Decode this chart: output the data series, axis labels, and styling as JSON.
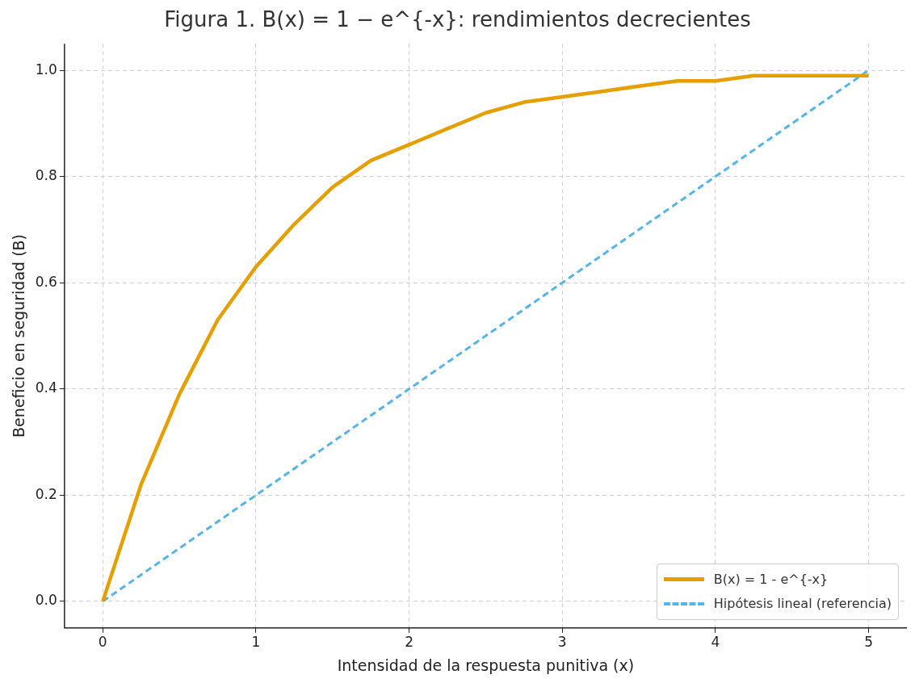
{
  "chart_data": {
    "type": "line",
    "title": "Figura 1. B(x) = 1 − e^{-x}: rendimientos decrecientes",
    "xlabel": "Intensidad de la respuesta punitiva (x)",
    "ylabel": "Beneficio en seguridad (B)",
    "series": [
      {
        "name": "B(x) = 1 - e^{-x}",
        "color": "#e69f00",
        "line_style": "solid",
        "x": [
          0,
          0.25,
          0.5,
          0.75,
          1,
          1.25,
          1.5,
          1.75,
          2,
          2.25,
          2.5,
          2.75,
          3,
          3.25,
          3.5,
          3.75,
          4,
          4.25,
          4.5,
          4.75,
          5
        ],
        "values": [
          0,
          0.22,
          0.39,
          0.53,
          0.63,
          0.71,
          0.78,
          0.83,
          0.86,
          0.89,
          0.92,
          0.94,
          0.95,
          0.96,
          0.97,
          0.98,
          0.98,
          0.99,
          0.99,
          0.99,
          0.99
        ]
      },
      {
        "name": "Hipótesis lineal (referencia)",
        "color": "#56b4e9",
        "line_style": "dashed",
        "x": [
          0,
          5
        ],
        "values": [
          0,
          1
        ]
      }
    ],
    "xlim": [
      -0.25,
      5.25
    ],
    "xticks": [
      0,
      1,
      2,
      3,
      4,
      5
    ],
    "ylim": [
      -0.05,
      1.05
    ],
    "yticks": [
      {
        "value": 0,
        "label": "0.0"
      },
      {
        "value": 0.2,
        "label": "0.2"
      },
      {
        "value": 0.4,
        "label": "0.4"
      },
      {
        "value": 0.6,
        "label": "0.6"
      },
      {
        "value": 0.8,
        "label": "0.8"
      },
      {
        "value": 1,
        "label": "1.0"
      }
    ],
    "grid": true,
    "legend": "bottom right",
    "marker": "none"
  }
}
